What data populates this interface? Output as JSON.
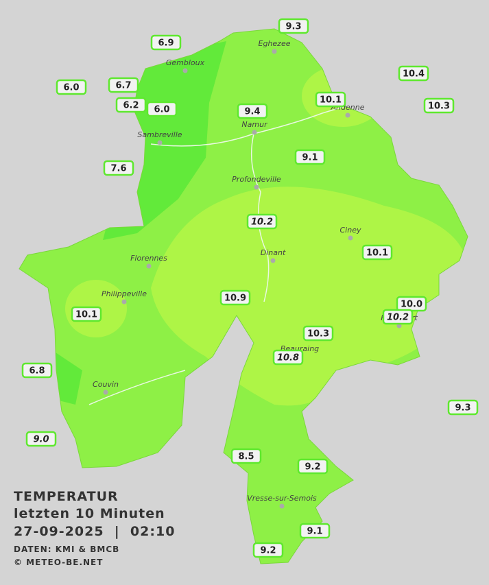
{
  "legend": {
    "title": "TEMPERATUR",
    "period": "letzten 10 Minuten",
    "datetime": "27-09-2025  |  02:10",
    "source": "DATEN: KMI & BMCB",
    "copyright": "© METEO-BE.NET"
  },
  "places": [
    "Eghezee",
    "Gembloux",
    "Andenne",
    "Namur",
    "Sambreville",
    "Profondeville",
    "Ciney",
    "Florennes",
    "Dinant",
    "Philippeville",
    "Rochefort",
    "Beauraing",
    "Couvin",
    "Vresse-sur-Semois"
  ],
  "stations": [
    "6.9",
    "9.3",
    "10.4",
    "6.0",
    "6.7",
    "10.1",
    "10.3",
    "6.2",
    "6.0",
    "9.4",
    "9.1",
    "7.6",
    "10.2",
    "10.1",
    "10.9",
    "10.0",
    "10.2",
    "10.1",
    "10.3",
    "10.8",
    "6.8",
    "9.3",
    "9.0",
    "8.5",
    "9.2",
    "9.1",
    "9.2"
  ]
}
